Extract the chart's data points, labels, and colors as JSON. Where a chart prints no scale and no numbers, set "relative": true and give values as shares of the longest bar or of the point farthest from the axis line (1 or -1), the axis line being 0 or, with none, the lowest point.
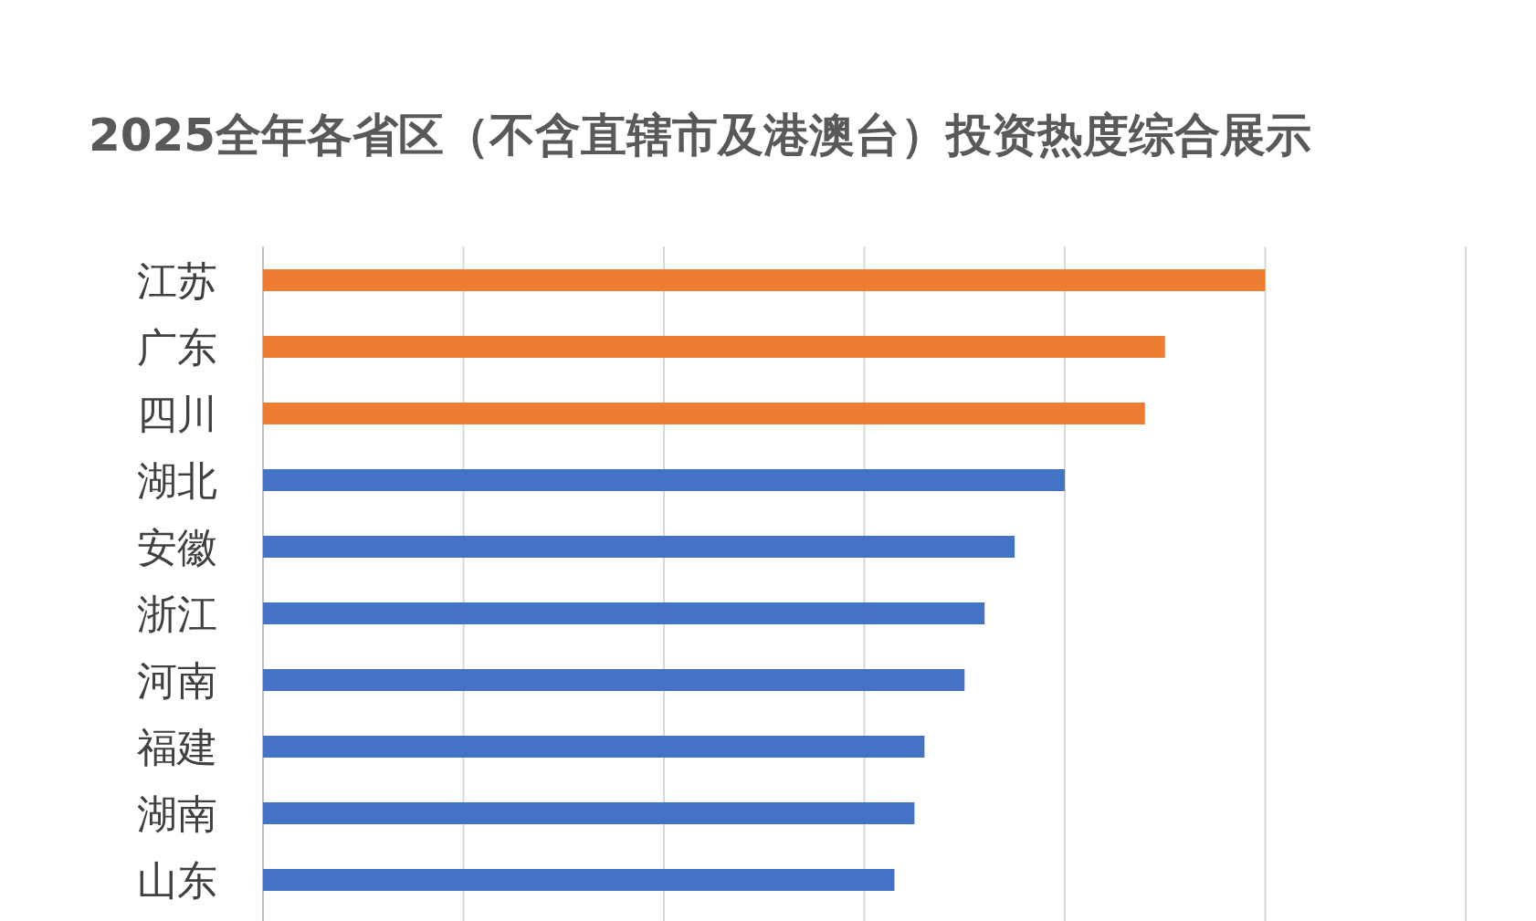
{
  "chart_data": {
    "type": "bar",
    "orientation": "horizontal",
    "relative": true,
    "grid": "x",
    "title": "2025全年各省区（不含直辖市及港澳台）投资热度综合展示",
    "categories": [
      "江苏",
      "广东",
      "四川",
      "湖北",
      "安徽",
      "浙江",
      "河南",
      "福建",
      "湖南",
      "山东"
    ],
    "values": [
      1,
      0.9,
      0.88,
      0.8,
      0.75,
      0.72,
      0.7,
      0.66,
      0.65,
      0.63
    ],
    "colors": [
      "#ed7d31",
      "#ed7d31",
      "#ed7d31",
      "#4472c4",
      "#4472c4",
      "#4472c4",
      "#4472c4",
      "#4472c4",
      "#4472c4",
      "#4472c4"
    ]
  }
}
